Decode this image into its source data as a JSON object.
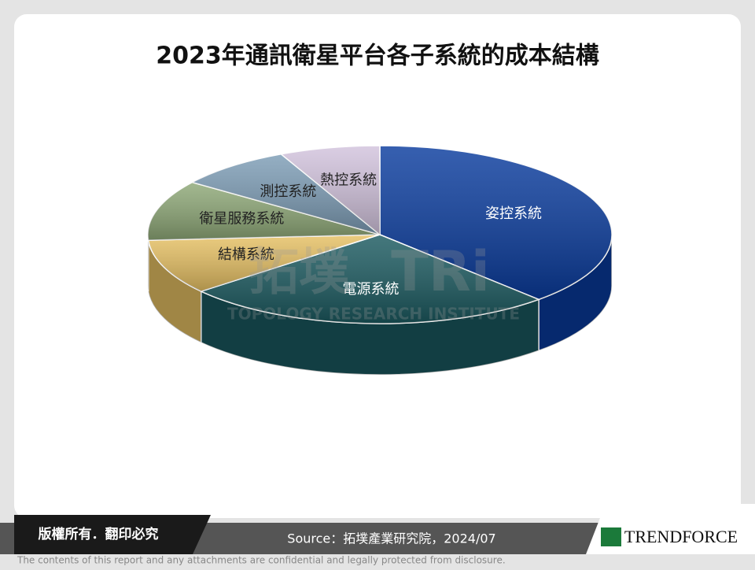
{
  "chart_data": {
    "type": "pie",
    "title": "2023年通訊衛星平台各子系統的成本結構",
    "categories": [
      "姿控系統",
      "電源系統",
      "結構系統",
      "衛星服務系統",
      "測控系統",
      "熱控系統"
    ],
    "values": [
      38,
      26,
      10,
      11,
      8,
      7
    ],
    "colors": [
      "#0a3c9e",
      "#1b5a60",
      "#e6c063",
      "#8ea877",
      "#7d9db6",
      "#d2c3dd"
    ]
  },
  "watermark": {
    "logo": "拓墣",
    "mark": "TRi",
    "name": "TOPOLOGY RESEARCH INSTITUTE"
  },
  "footer": {
    "rights": "版權所有．翻印必究",
    "source": "Source：拓墣產業研究院，2024/07",
    "brand": "TRENDFORCE",
    "disclaimer": "The contents of this report and any attachments are confidential and legally protected from disclosure."
  }
}
